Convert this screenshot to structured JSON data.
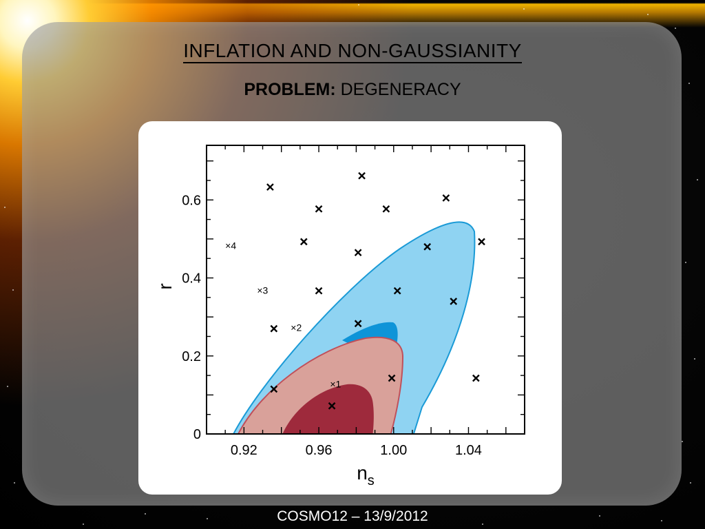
{
  "slide": {
    "title": "INFLATION AND NON-GAUSSIANITY",
    "subtitle_bold": "PROBLEM:",
    "subtitle_rest": " DEGENERACY",
    "footer": "COSMO12 – 13/9/2012"
  },
  "colors": {
    "panel": "#969696",
    "blue_outer": "#8fd3f2",
    "blue_inner": "#0e94d8",
    "blue_edge": "#1a9ad6",
    "red_outer": "#d9a19a",
    "red_inner": "#9e2a3c",
    "red_edge": "#c0505a"
  },
  "chart_data": {
    "type": "scatter",
    "xlabel": "n",
    "xlabel_sub": "s",
    "ylabel": "r",
    "xlim": [
      0.9,
      1.07
    ],
    "ylim": [
      0,
      0.74
    ],
    "xticks": [
      "0.92",
      "0.96",
      "1.00",
      "1.04"
    ],
    "xtick_values": [
      0.92,
      0.96,
      1.0,
      1.04
    ],
    "yticks": [
      "0",
      "0.2",
      "0.4",
      "0.6"
    ],
    "ytick_values": [
      0,
      0.2,
      0.4,
      0.6
    ],
    "markers": [
      {
        "x": 0.934,
        "y": 0.633
      },
      {
        "x": 0.983,
        "y": 0.662
      },
      {
        "x": 0.96,
        "y": 0.577
      },
      {
        "x": 0.996,
        "y": 0.577
      },
      {
        "x": 1.028,
        "y": 0.605
      },
      {
        "x": 0.952,
        "y": 0.493
      },
      {
        "x": 0.981,
        "y": 0.465
      },
      {
        "x": 1.018,
        "y": 0.48
      },
      {
        "x": 1.047,
        "y": 0.493
      },
      {
        "x": 0.96,
        "y": 0.367
      },
      {
        "x": 1.002,
        "y": 0.367
      },
      {
        "x": 1.032,
        "y": 0.34
      },
      {
        "x": 0.936,
        "y": 0.27
      },
      {
        "x": 0.981,
        "y": 0.283
      },
      {
        "x": 0.936,
        "y": 0.115
      },
      {
        "x": 0.999,
        "y": 0.143
      },
      {
        "x": 1.044,
        "y": 0.143
      },
      {
        "x": 0.967,
        "y": 0.072
      }
    ],
    "labeled_markers": [
      {
        "label": "4",
        "x": 0.91,
        "y": 0.483
      },
      {
        "label": "3",
        "x": 0.927,
        "y": 0.368
      },
      {
        "label": "2",
        "x": 0.945,
        "y": 0.273
      },
      {
        "label": "1",
        "x": 0.966,
        "y": 0.128
      }
    ]
  }
}
